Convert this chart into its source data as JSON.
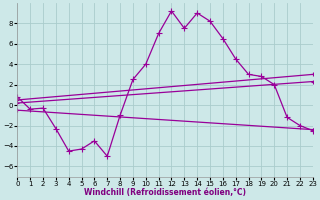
{
  "xlabel": "Windchill (Refroidissement éolien,°C)",
  "bg_color": "#cde8e8",
  "line_color": "#990099",
  "grid_color": "#aacccc",
  "xlim": [
    0,
    23
  ],
  "ylim": [
    -7,
    10
  ],
  "yticks": [
    -6,
    -4,
    -2,
    0,
    2,
    4,
    6,
    8
  ],
  "xticks": [
    0,
    1,
    2,
    3,
    4,
    5,
    6,
    7,
    8,
    9,
    10,
    11,
    12,
    13,
    14,
    15,
    16,
    17,
    18,
    19,
    20,
    21,
    22,
    23
  ],
  "line1_x": [
    0,
    1,
    2,
    3,
    4,
    5,
    6,
    7,
    8,
    9,
    10,
    11,
    12,
    13,
    14,
    15,
    16,
    17,
    18,
    19,
    20,
    21,
    22,
    23
  ],
  "line1_y": [
    0.8,
    -0.4,
    -0.3,
    -2.3,
    -4.5,
    -4.3,
    -3.5,
    -5.0,
    -1.0,
    2.5,
    4.0,
    7.0,
    9.2,
    7.5,
    9.0,
    8.2,
    6.5,
    4.5,
    3.0,
    2.8,
    2.0,
    -1.2,
    -2.0,
    -2.5
  ],
  "line2_x": [
    0,
    23
  ],
  "line2_y": [
    0.5,
    3.0
  ],
  "line3_x": [
    0,
    23
  ],
  "line3_y": [
    0.2,
    2.3
  ],
  "line4_x": [
    0,
    23
  ],
  "line4_y": [
    -0.5,
    -2.4
  ],
  "marker_size": 3,
  "line_width": 0.9,
  "tick_fontsize": 5,
  "xlabel_fontsize": 5.5
}
